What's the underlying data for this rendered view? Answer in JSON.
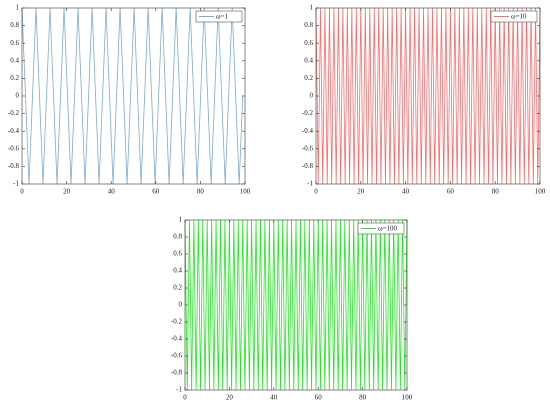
{
  "chart_data": [
    {
      "type": "line",
      "legend": "upper right",
      "xlim": [
        0,
        100
      ],
      "ylim": [
        -1,
        1
      ],
      "xticks": [
        0,
        20,
        40,
        60,
        80,
        100
      ],
      "yticks": [
        -1,
        -0.8,
        -0.6,
        -0.4,
        -0.2,
        0,
        0.2,
        0.4,
        0.6,
        0.8,
        1
      ],
      "x": [
        0,
        1.57,
        3.14,
        4.71,
        6.28,
        7.85,
        9.42,
        11,
        12.57,
        14.14,
        15.71,
        17.28,
        18.85,
        20.42,
        21.99,
        23.56,
        25.13,
        26.7,
        28.27,
        29.85,
        31.42,
        32.99,
        34.56,
        36.13,
        37.7,
        39.27,
        40.84,
        42.41,
        43.98,
        45.55,
        47.12,
        48.69,
        50.27,
        51.84,
        53.41,
        54.98,
        56.55,
        58.12,
        59.69,
        61.26,
        62.83,
        64.4,
        65.97,
        67.54,
        69.12,
        70.69,
        72.26,
        73.83,
        75.4,
        76.97,
        78.54,
        80.11,
        81.68,
        83.25,
        84.82,
        86.39,
        87.96,
        89.54,
        91.11,
        92.68,
        94.25,
        95.82,
        97.39,
        98.96
      ],
      "series": [
        {
          "name": "ω=1",
          "color": "#79acd6",
          "values": [
            1,
            0,
            -1,
            0,
            1,
            0,
            -1,
            0,
            1,
            0,
            -1,
            0,
            1,
            0,
            -1,
            0,
            1,
            0,
            -1,
            0,
            1,
            0,
            -1,
            0,
            1,
            0,
            -1,
            0,
            1,
            0,
            -1,
            0,
            1,
            0,
            -1,
            0,
            1,
            0,
            -1,
            0,
            1,
            0,
            -1,
            0,
            1,
            0,
            -1,
            0,
            1,
            0,
            -1,
            0,
            1,
            0,
            -1,
            0,
            1,
            0,
            -1,
            0,
            1,
            0,
            -1,
            0
          ]
        }
      ]
    },
    {
      "type": "line",
      "legend": "upper right",
      "xlim": [
        0,
        100
      ],
      "ylim": [
        -1,
        1
      ],
      "xticks": [
        0,
        20,
        40,
        60,
        80,
        100
      ],
      "yticks": [
        -1,
        -0.8,
        -0.6,
        -0.4,
        -0.2,
        0,
        0.2,
        0.4,
        0.6,
        0.8,
        1
      ],
      "x": [
        0,
        1,
        2,
        3,
        4,
        5,
        6,
        7,
        8,
        9,
        10,
        11,
        12,
        13,
        14,
        15,
        16,
        17,
        18,
        19,
        20,
        21,
        22,
        23,
        24,
        25,
        26,
        27,
        28,
        29,
        30,
        31,
        32,
        33,
        34,
        35,
        36,
        37,
        38,
        39,
        40,
        41,
        42,
        43,
        44,
        45,
        46,
        47,
        48,
        49,
        50,
        51,
        52,
        53,
        54,
        55,
        56,
        57,
        58,
        59,
        60,
        61,
        62,
        63,
        64,
        65,
        66,
        67,
        68,
        69,
        70,
        71,
        72,
        73,
        74,
        75,
        76,
        77,
        78,
        79,
        80,
        81,
        82,
        83,
        84,
        85,
        86,
        87,
        88,
        89,
        90,
        91,
        92,
        93,
        94,
        95,
        96,
        97,
        98,
        99,
        100
      ],
      "series": [
        {
          "name": "ω=10",
          "color": "#ff6b6b",
          "values": [
            1,
            -1,
            1,
            -1,
            1,
            -1,
            1,
            -1,
            1,
            -1,
            1,
            -1,
            1,
            -1,
            1,
            -1,
            1,
            -1,
            1,
            -1,
            1,
            -1,
            1,
            -1,
            1,
            -1,
            1,
            -1,
            1,
            -1,
            1,
            -1,
            1,
            -1,
            1,
            -1,
            1,
            -1,
            1,
            -1,
            1,
            -1,
            1,
            -1,
            1,
            -1,
            1,
            -1,
            1,
            -1,
            1,
            -1,
            1,
            -1,
            1,
            -1,
            1,
            -1,
            1,
            -1,
            1,
            -1,
            1,
            -1,
            1,
            -1,
            1,
            -1,
            1,
            -1,
            1,
            -1,
            1,
            -1,
            1,
            -1,
            1,
            -1,
            1,
            -1,
            1,
            -1,
            1,
            -1,
            1,
            -1,
            1,
            -1,
            1,
            -1,
            1,
            -1,
            1,
            -1,
            1,
            -1,
            1,
            -1,
            1,
            -1,
            1
          ]
        }
      ]
    },
    {
      "type": "line",
      "legend": "upper right",
      "xlim": [
        0,
        100
      ],
      "ylim": [
        -1,
        1
      ],
      "xticks": [
        0,
        20,
        40,
        60,
        80,
        100
      ],
      "yticks": [
        -1,
        -0.8,
        -0.6,
        -0.4,
        -0.2,
        0,
        0.2,
        0.4,
        0.6,
        0.8,
        1
      ],
      "x": [
        0,
        1,
        2,
        3,
        4,
        5,
        6,
        7,
        8,
        9,
        10,
        11,
        12,
        13,
        14,
        15,
        16,
        17,
        18,
        19,
        20,
        21,
        22,
        23,
        24,
        25,
        26,
        27,
        28,
        29,
        30,
        31,
        32,
        33,
        34,
        35,
        36,
        37,
        38,
        39,
        40,
        41,
        42,
        43,
        44,
        45,
        46,
        47,
        48,
        49,
        50,
        51,
        52,
        53,
        54,
        55,
        56,
        57,
        58,
        59,
        60,
        61,
        62,
        63,
        64,
        65,
        66,
        67,
        68,
        69,
        70,
        71,
        72,
        73,
        74,
        75,
        76,
        77,
        78,
        79,
        80,
        81,
        82,
        83,
        84,
        85,
        86,
        87,
        88,
        89,
        90,
        91,
        92,
        93,
        94,
        95,
        96,
        97,
        98,
        99,
        100
      ],
      "series": [
        {
          "name": "ω=100",
          "color": "#22e822",
          "values": [
            1,
            -1,
            1,
            -1,
            1,
            -1,
            1,
            -1,
            1,
            -1,
            1,
            -1,
            1,
            -1,
            1,
            -1,
            1,
            -1,
            1,
            -1,
            1,
            -1,
            1,
            -1,
            1,
            -1,
            1,
            -1,
            1,
            -1,
            1,
            -1,
            1,
            -1,
            1,
            -1,
            1,
            -1,
            1,
            -1,
            1,
            -1,
            1,
            -1,
            1,
            -1,
            1,
            -1,
            1,
            -1,
            1,
            -1,
            1,
            -1,
            1,
            -1,
            1,
            -1,
            1,
            -1,
            1,
            -1,
            1,
            -1,
            1,
            -1,
            1,
            -1,
            1,
            -1,
            1,
            -1,
            1,
            -1,
            1,
            -1,
            1,
            -1,
            1,
            -1,
            1,
            -1,
            1,
            -1,
            1,
            -1,
            1,
            -1,
            1,
            -1,
            1,
            -1,
            1,
            -1,
            1,
            -1,
            1,
            -1,
            1,
            -1,
            1
          ]
        }
      ]
    }
  ]
}
